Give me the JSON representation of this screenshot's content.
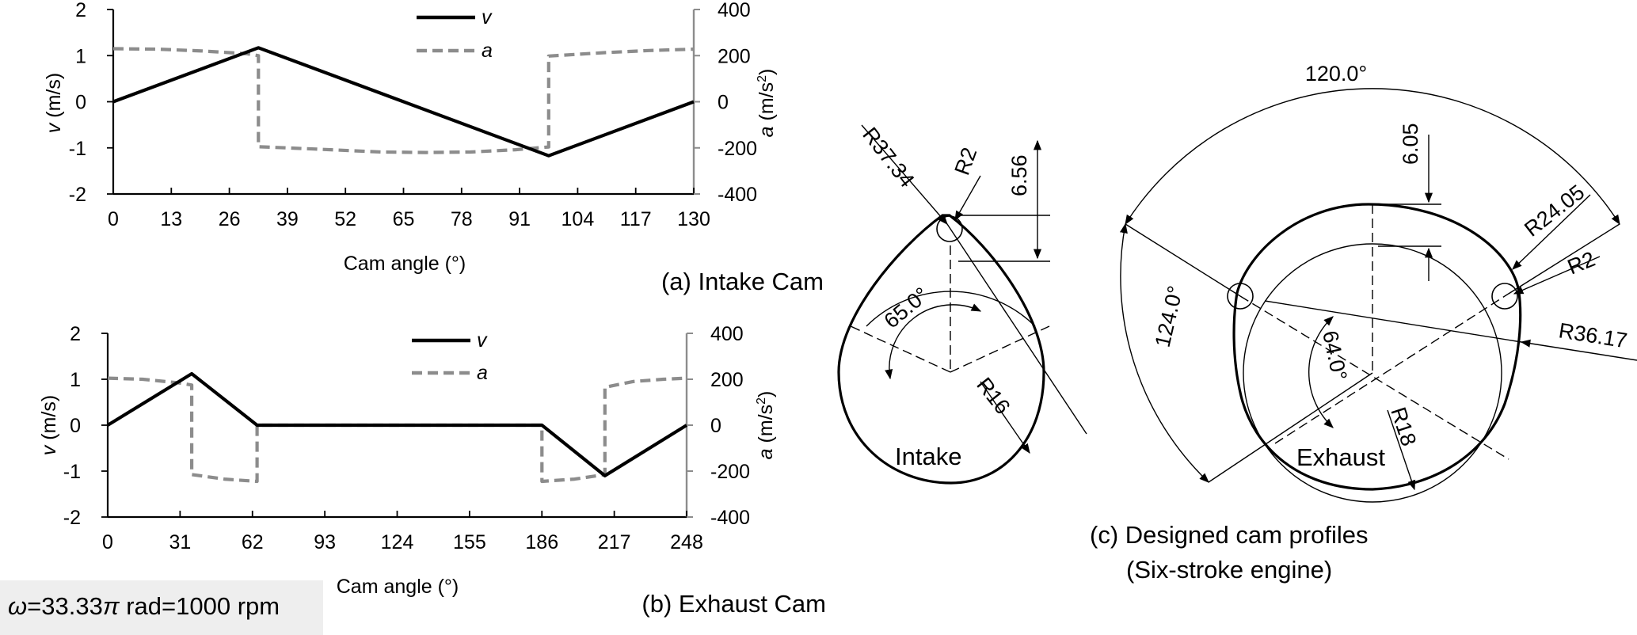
{
  "chart_data": [
    {
      "type": "line",
      "caption": "(a) Intake Cam",
      "xlabel": "Cam angle (°)",
      "ylabel_left": "v (m/s)",
      "ylabel_right": "a (m/s²)",
      "xlim": [
        0,
        130
      ],
      "ylim_left": [
        -2,
        2
      ],
      "ylim_right": [
        -400,
        400
      ],
      "xticks": [
        "0",
        "13",
        "26",
        "39",
        "52",
        "65",
        "78",
        "91",
        "104",
        "117",
        "130"
      ],
      "yticks_left": [
        "2",
        "1",
        "0",
        "-1",
        "-2"
      ],
      "yticks_right": [
        "400",
        "200",
        "0",
        "-200",
        "-400"
      ],
      "legend": [
        "v",
        "a"
      ],
      "legend_position": "top-center",
      "series": [
        {
          "name": "v",
          "axis": "left",
          "color": "#000000",
          "style": "solid",
          "points": [
            [
              0,
              0
            ],
            [
              32.5,
              1.17
            ],
            [
              97.5,
              -1.17
            ],
            [
              130,
              0
            ]
          ]
        },
        {
          "name": "a",
          "axis": "right",
          "color": "#8c8c8c",
          "style": "dashed",
          "points": [
            [
              0,
              230
            ],
            [
              10,
              228
            ],
            [
              20,
              220
            ],
            [
              30,
              208
            ],
            [
              32.5,
              200
            ],
            [
              32.5,
              -195
            ],
            [
              45,
              -205
            ],
            [
              60,
              -218
            ],
            [
              70,
              -220
            ],
            [
              80,
              -218
            ],
            [
              90,
              -208
            ],
            [
              97.5,
              -196
            ],
            [
              97.5,
              198
            ],
            [
              110,
              213
            ],
            [
              120,
              222
            ],
            [
              130,
              228
            ]
          ]
        }
      ]
    },
    {
      "type": "line",
      "caption": "(b) Exhaust Cam",
      "xlabel": "Cam angle (°)",
      "ylabel_left": "v (m/s)",
      "ylabel_right": "a (m/s²)",
      "xlim": [
        0,
        248
      ],
      "ylim_left": [
        -2,
        2
      ],
      "ylim_right": [
        -400,
        400
      ],
      "xticks": [
        "0",
        "31",
        "62",
        "93",
        "124",
        "155",
        "186",
        "217",
        "248"
      ],
      "yticks_left": [
        "2",
        "1",
        "0",
        "-1",
        "-2"
      ],
      "yticks_right": [
        "400",
        "200",
        "0",
        "-200",
        "-400"
      ],
      "legend": [
        "v",
        "a"
      ],
      "legend_position": "top-center",
      "series": [
        {
          "name": "v",
          "axis": "left",
          "color": "#000000",
          "style": "solid",
          "points": [
            [
              0,
              0
            ],
            [
              36,
              1.12
            ],
            [
              64,
              0
            ],
            [
              186,
              0
            ],
            [
              213,
              -1.1
            ],
            [
              248,
              0
            ]
          ]
        },
        {
          "name": "a",
          "axis": "right",
          "color": "#8c8c8c",
          "style": "dashed",
          "points": [
            [
              0,
              205
            ],
            [
              15,
              200
            ],
            [
              30,
              185
            ],
            [
              36,
              175
            ],
            [
              36,
              -215
            ],
            [
              50,
              -235
            ],
            [
              64,
              -245
            ],
            [
              64,
              0
            ],
            [
              186,
              0
            ],
            [
              186,
              -245
            ],
            [
              200,
              -235
            ],
            [
              213,
              -215
            ],
            [
              213,
              165
            ],
            [
              225,
              190
            ],
            [
              238,
              200
            ],
            [
              248,
              205
            ]
          ]
        }
      ]
    }
  ],
  "diagram": {
    "caption_line1": "(c) Designed cam profiles",
    "caption_line2": "(Six-stroke engine)",
    "intake": {
      "label": "Intake",
      "dimensions": [
        "R37.34",
        "R2",
        "6.56",
        "65.0°",
        "R16"
      ]
    },
    "exhaust": {
      "label": "Exhaust",
      "dimensions": [
        "120.0°",
        "6.05",
        "R24.05",
        "R2",
        "R36.17",
        "124.0°",
        "64.0°",
        "R18"
      ]
    }
  },
  "note": {
    "omega": "ω",
    "text": "=33.33",
    "pi": "π",
    "text2": " rad=1000 rpm"
  },
  "colors": {
    "v_line": "#000000",
    "a_line": "#8c8c8c",
    "note_background": "#eeeeee"
  }
}
